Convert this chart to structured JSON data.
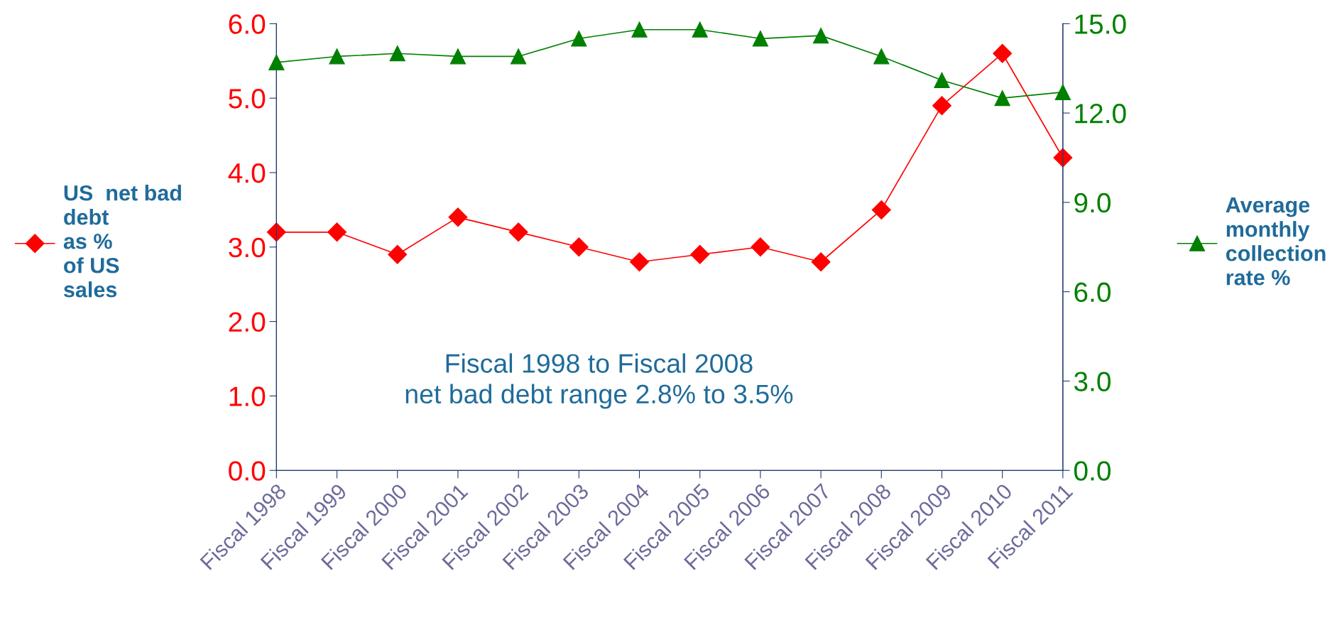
{
  "chart_data": {
    "type": "line",
    "categories": [
      "Fiscal 1998",
      "Fiscal 1999",
      "Fiscal 2000",
      "Fiscal 2001",
      "Fiscal 2002",
      "Fiscal 2003",
      "Fiscal 2004",
      "Fiscal 2005",
      "Fiscal 2006",
      "Fiscal 2007",
      "Fiscal 2008",
      "Fiscal 2009",
      "Fiscal 2010",
      "Fiscal 2011"
    ],
    "series": [
      {
        "name": "US  net bad\ndebt\nas %\nof US\nsales",
        "color": "#ff0000",
        "marker": "diamond",
        "values": [
          3.2,
          3.2,
          2.9,
          3.4,
          3.2,
          3.0,
          2.8,
          2.9,
          3.0,
          2.8,
          3.5,
          4.9,
          5.6,
          4.2
        ]
      },
      {
        "name": "Average\nmonthly\ncollection\nrate %",
        "color": "#008000",
        "marker": "triangle",
        "axis": "y2",
        "values": [
          13.7,
          13.9,
          14.0,
          13.9,
          13.9,
          14.5,
          14.8,
          14.8,
          14.5,
          14.6,
          13.9,
          13.1,
          12.5,
          12.7
        ]
      }
    ],
    "ylim": [
      0,
      6
    ],
    "yticks": [
      {
        "value": 0,
        "label": "0.0"
      },
      {
        "value": 1,
        "label": "1.0"
      },
      {
        "value": 2,
        "label": "2.0"
      },
      {
        "value": 3,
        "label": "3.0"
      },
      {
        "value": 4,
        "label": "4.0"
      },
      {
        "value": 5,
        "label": "5.0"
      },
      {
        "value": 6,
        "label": "6.0"
      }
    ],
    "y2lim": [
      0,
      15
    ],
    "y2ticks": [
      {
        "value": 0,
        "label": "0.0"
      },
      {
        "value": 3,
        "label": "3.0"
      },
      {
        "value": 6,
        "label": "6.0"
      },
      {
        "value": 9,
        "label": "9.0"
      },
      {
        "value": 12,
        "label": "12.0"
      },
      {
        "value": 15,
        "label": "15.0"
      }
    ],
    "annotations": [
      "Fiscal 1998 to Fiscal 2008\nnet bad debt range 2.8% to 3.5%"
    ],
    "legend": "left",
    "grid": false
  }
}
